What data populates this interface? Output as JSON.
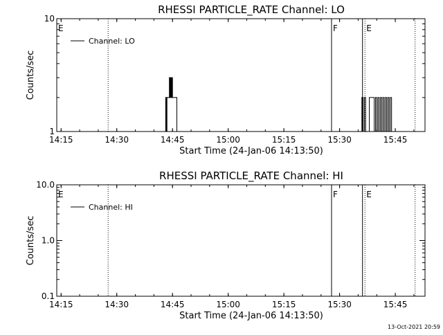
{
  "chart_data": [
    {
      "type": "line",
      "title": "RHESSI PARTICLE_RATE Channel: LO",
      "xlabel": "Start Time (24-Jan-06 14:13:50)",
      "ylabel": "Counts/sec",
      "yscale": "log",
      "ylim": [
        1,
        10
      ],
      "y_ticks": [
        {
          "value": 1,
          "label": "1"
        },
        {
          "value": 10,
          "label": "10"
        }
      ],
      "x_ticks": [
        "14:15",
        "14:30",
        "14:45",
        "15:00",
        "15:15",
        "15:30",
        "15:45"
      ],
      "xlim": [
        "14:13:50",
        "15:53:00"
      ],
      "legend": {
        "position": "top-left",
        "entries": [
          "Channel: LO"
        ]
      },
      "series": [
        {
          "name": "Channel: LO",
          "points": [
            [
              "14:43:00",
              1
            ],
            [
              "14:43:10",
              2
            ],
            [
              "14:43:20",
              1
            ],
            [
              "14:43:30",
              2
            ],
            [
              "14:43:40",
              2
            ],
            [
              "14:44:00",
              2
            ],
            [
              "14:44:10",
              3
            ],
            [
              "14:44:20",
              2
            ],
            [
              "14:44:30",
              3
            ],
            [
              "14:44:40",
              2
            ],
            [
              "14:44:50",
              3
            ],
            [
              "14:45:00",
              2
            ],
            [
              "14:45:20",
              2
            ],
            [
              "14:45:40",
              2
            ],
            [
              "14:46:00",
              2
            ],
            [
              "14:46:10",
              1
            ],
            [
              "14:47:00",
              1
            ],
            [
              "15:35:30",
              1
            ],
            [
              "15:36:00",
              2
            ],
            [
              "15:36:20",
              1
            ],
            [
              "15:36:40",
              2
            ],
            [
              "15:37:00",
              1
            ],
            [
              "15:37:30",
              1
            ],
            [
              "15:38:00",
              2
            ],
            [
              "15:39:00",
              2
            ],
            [
              "15:39:20",
              1
            ],
            [
              "15:39:40",
              2
            ],
            [
              "15:40:00",
              1
            ],
            [
              "15:40:20",
              2
            ],
            [
              "15:40:40",
              1
            ],
            [
              "15:41:00",
              2
            ],
            [
              "15:41:20",
              1
            ],
            [
              "15:41:40",
              2
            ],
            [
              "15:42:00",
              1
            ],
            [
              "15:42:20",
              2
            ],
            [
              "15:42:40",
              1
            ],
            [
              "15:43:00",
              2
            ],
            [
              "15:43:20",
              1
            ],
            [
              "15:43:40",
              2
            ],
            [
              "15:44:00",
              1
            ]
          ]
        }
      ],
      "markers": [
        {
          "time": "14:13:50",
          "style": "solid",
          "label": "E"
        },
        {
          "time": "14:27:40",
          "style": "dotted",
          "label": ""
        },
        {
          "time": "15:27:50",
          "style": "solid",
          "label": "F"
        },
        {
          "time": "15:36:10",
          "style": "solid",
          "label": ""
        },
        {
          "time": "15:36:50",
          "style": "dotted",
          "label": "E"
        },
        {
          "time": "15:50:20",
          "style": "dotted",
          "label": ""
        }
      ]
    },
    {
      "type": "line",
      "title": "RHESSI PARTICLE_RATE Channel: HI",
      "xlabel": "Start Time (24-Jan-06 14:13:50)",
      "ylabel": "Counts/sec",
      "yscale": "log",
      "ylim": [
        0.1,
        10
      ],
      "y_ticks": [
        {
          "value": 0.1,
          "label": "0.1"
        },
        {
          "value": 1,
          "label": "1.0"
        },
        {
          "value": 10,
          "label": "10.0"
        }
      ],
      "x_ticks": [
        "14:15",
        "14:30",
        "14:45",
        "15:00",
        "15:15",
        "15:30",
        "15:45"
      ],
      "xlim": [
        "14:13:50",
        "15:53:00"
      ],
      "legend": {
        "position": "top-left",
        "entries": [
          "Channel: HI"
        ]
      },
      "series": [
        {
          "name": "Channel: HI",
          "points": []
        }
      ],
      "markers": [
        {
          "time": "14:13:50",
          "style": "solid",
          "label": "E"
        },
        {
          "time": "14:27:40",
          "style": "dotted",
          "label": ""
        },
        {
          "time": "15:27:50",
          "style": "solid",
          "label": "F"
        },
        {
          "time": "15:36:10",
          "style": "solid",
          "label": ""
        },
        {
          "time": "15:36:50",
          "style": "dotted",
          "label": "E"
        },
        {
          "time": "15:50:20",
          "style": "dotted",
          "label": ""
        }
      ]
    }
  ],
  "footer": {
    "timestamp": "13-Oct-2021 20:59"
  }
}
